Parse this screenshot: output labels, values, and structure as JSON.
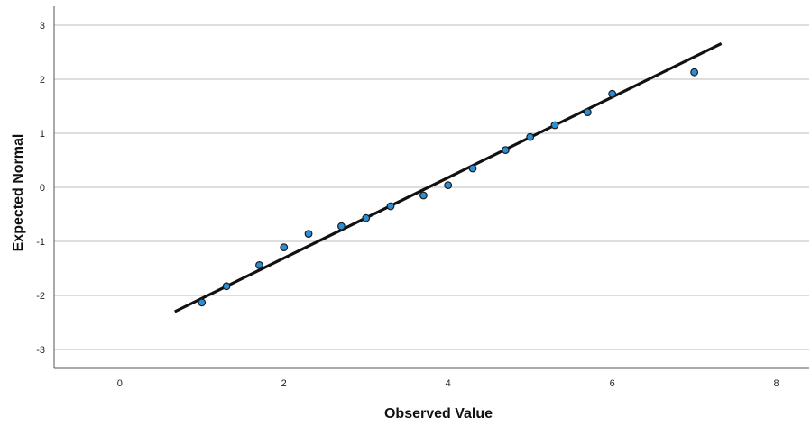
{
  "chart_data": {
    "type": "scatter",
    "title": "",
    "xlabel": "Observed Value",
    "ylabel": "Expected Normal",
    "xlim": [
      -0.8,
      8.4
    ],
    "ylim": [
      -3.35,
      3.35
    ],
    "xticks": [
      0,
      2,
      4,
      6,
      8
    ],
    "xtick_labels": [
      "0",
      "2",
      "4",
      "6",
      "8"
    ],
    "yticks": [
      -3,
      -2,
      -1,
      0,
      1,
      2,
      3
    ],
    "ytick_labels": [
      "-3",
      "-2",
      "-1",
      "0",
      "1",
      "2",
      "3"
    ],
    "grid": "horizontal",
    "legend": "none",
    "colors": {
      "point_fill": "#2b8fd6",
      "point_stroke": "#1a1a1a",
      "line": "#111111",
      "grid": "#bdbdbd",
      "axis": "#555555"
    },
    "points": [
      {
        "x": 1.0,
        "y": -2.13
      },
      {
        "x": 1.3,
        "y": -1.83
      },
      {
        "x": 1.7,
        "y": -1.44
      },
      {
        "x": 2.0,
        "y": -1.11
      },
      {
        "x": 2.3,
        "y": -0.86
      },
      {
        "x": 2.7,
        "y": -0.72
      },
      {
        "x": 3.0,
        "y": -0.57
      },
      {
        "x": 3.3,
        "y": -0.35
      },
      {
        "x": 3.7,
        "y": -0.15
      },
      {
        "x": 4.0,
        "y": 0.04
      },
      {
        "x": 4.3,
        "y": 0.35
      },
      {
        "x": 4.7,
        "y": 0.69
      },
      {
        "x": 5.0,
        "y": 0.93
      },
      {
        "x": 5.3,
        "y": 1.15
      },
      {
        "x": 5.7,
        "y": 1.39
      },
      {
        "x": 6.0,
        "y": 1.73
      },
      {
        "x": 7.0,
        "y": 2.13
      }
    ],
    "reference_line": {
      "x": [
        0.67,
        7.33
      ],
      "y": [
        -2.3,
        2.66
      ]
    }
  }
}
